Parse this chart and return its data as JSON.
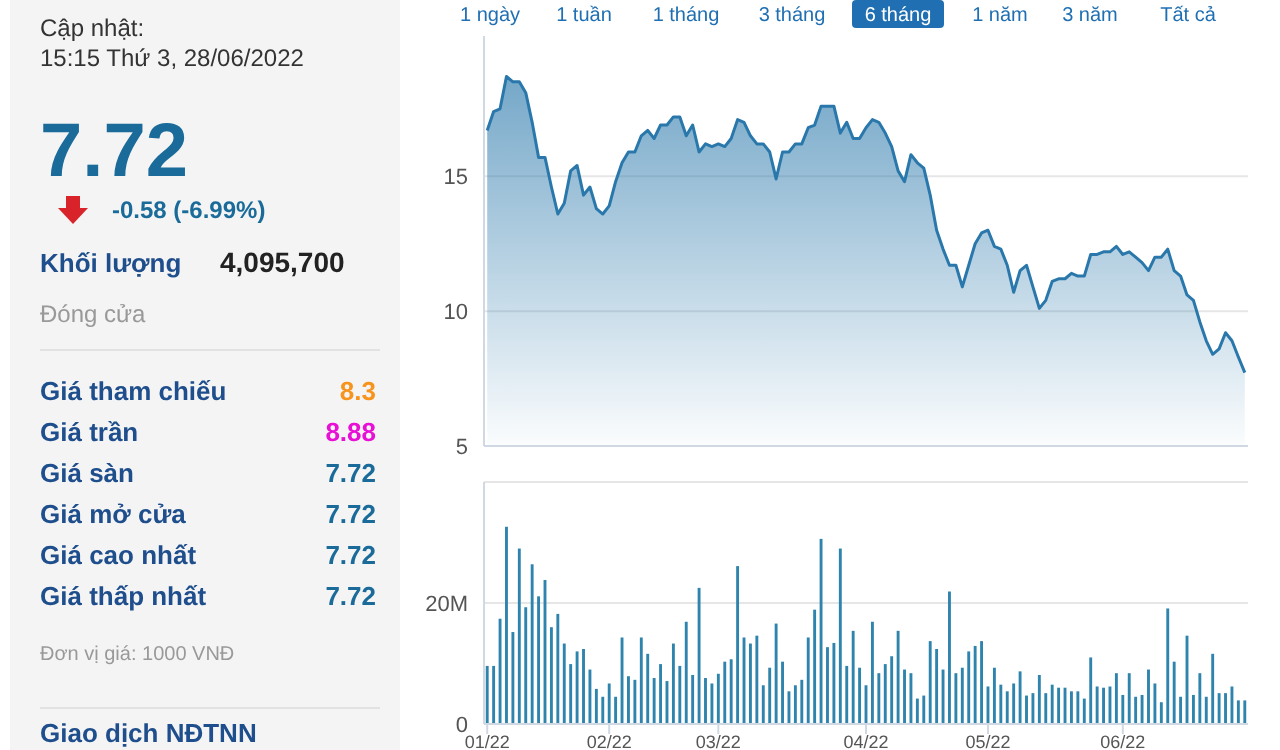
{
  "chart_data": [
    {
      "type": "other",
      "title": "Cập nhật:",
      "subtitle": "15:15 Thứ 3, 28/06/2022",
      "annotations": [
        "7.72",
        "-0.58 (-6.99%)",
        "Khối lượng",
        "4,095,700",
        "Đóng cửa",
        "Giá tham chiếu",
        "8.3",
        "Giá trần",
        "8.88",
        "Giá sàn",
        "7.72",
        "Giá mở cửa",
        "7.72",
        "Giá cao nhất",
        "7.72",
        "Giá thấp nhất",
        "7.72",
        "Đơn vị giá: 1000 VNĐ",
        "Giao dịch NĐTNN"
      ]
    },
    {
      "type": "area",
      "annotations": [
        "1 ngày",
        "1 tuần",
        "1 tháng",
        "3 tháng",
        "6 tháng",
        "1 năm",
        "3 năm",
        "Tất cả"
      ],
      "tick_labels": "y",
      "grid": "y",
      "ylim": [
        5,
        20.2
      ],
      "yticks": [
        5,
        10,
        15
      ],
      "categories": [
        null,
        null,
        null,
        null,
        null,
        null,
        null,
        null,
        null,
        null,
        null,
        null,
        null,
        null,
        null,
        null,
        null,
        null,
        null,
        null,
        null,
        null,
        null,
        null,
        null,
        null,
        null,
        null,
        null,
        null,
        null,
        null,
        null,
        null,
        null,
        null,
        null,
        null,
        null,
        null,
        null,
        null,
        null,
        null,
        null,
        null,
        null,
        null,
        null,
        null,
        null,
        null,
        null,
        null,
        null,
        null,
        null,
        null,
        null,
        null,
        null,
        null,
        null,
        null,
        null,
        null,
        null,
        null,
        null,
        null,
        null,
        null,
        null,
        null,
        null,
        null,
        null,
        null,
        null,
        null,
        null,
        null,
        null,
        null,
        null,
        null,
        null,
        null,
        null,
        null,
        null,
        null,
        null,
        null,
        null,
        null,
        null,
        null,
        null,
        null,
        null,
        null,
        null,
        null,
        null,
        null,
        null,
        null,
        null,
        null,
        null,
        null,
        null,
        null,
        null,
        null,
        null,
        null,
        null
      ],
      "series": [
        {
          "color": "#2a78ab",
          "values": [
            16.7,
            17.4,
            17.5,
            18.7,
            18.5,
            18.5,
            18.1,
            17.0,
            15.7,
            15.7,
            14.6,
            13.6,
            14.0,
            15.2,
            15.4,
            14.3,
            14.6,
            13.8,
            13.6,
            13.9,
            14.8,
            15.5,
            15.9,
            15.9,
            16.5,
            16.7,
            16.4,
            16.9,
            16.9,
            17.2,
            17.2,
            16.5,
            16.9,
            15.9,
            16.2,
            16.1,
            16.2,
            16.1,
            16.4,
            17.1,
            17.0,
            16.5,
            16.2,
            16.2,
            15.9,
            14.9,
            15.9,
            15.9,
            16.2,
            16.2,
            16.8,
            16.9,
            17.6,
            17.6,
            17.6,
            16.6,
            17.0,
            16.4,
            16.4,
            16.8,
            17.1,
            17.0,
            16.6,
            16.1,
            15.2,
            14.8,
            15.8,
            15.5,
            15.3,
            14.3,
            13.0,
            12.3,
            11.7,
            11.7,
            10.9,
            11.7,
            12.5,
            12.9,
            13.0,
            12.4,
            12.3,
            11.7,
            10.7,
            11.5,
            11.7,
            10.9,
            10.1,
            10.4,
            11.1,
            11.2,
            11.2,
            11.4,
            11.3,
            11.3,
            12.1,
            12.1,
            12.2,
            12.2,
            12.4,
            12.1,
            12.2,
            12.0,
            11.8,
            11.5,
            12.0,
            12.0,
            12.3,
            11.5,
            11.3,
            10.6,
            10.4,
            9.6,
            8.9,
            8.4,
            8.6,
            9.2,
            8.9,
            8.3,
            7.72
          ]
        }
      ]
    },
    {
      "type": "bar",
      "grid": "y",
      "ylim": [
        0,
        40
      ],
      "yticks": [
        0,
        {
          "value": 20,
          "label": "20M"
        },
        {
          "value": 40,
          "label": null
        }
      ],
      "categories": [
        "01/22",
        null,
        null,
        null,
        null,
        null,
        null,
        null,
        null,
        null,
        null,
        null,
        null,
        null,
        null,
        null,
        null,
        null,
        null,
        "02/22",
        null,
        null,
        null,
        null,
        null,
        null,
        null,
        null,
        null,
        null,
        null,
        null,
        null,
        null,
        null,
        null,
        "03/22",
        null,
        null,
        null,
        null,
        null,
        null,
        null,
        null,
        null,
        null,
        null,
        null,
        null,
        null,
        null,
        null,
        null,
        null,
        null,
        null,
        null,
        null,
        "04/22",
        null,
        null,
        null,
        null,
        null,
        null,
        null,
        null,
        null,
        null,
        null,
        null,
        null,
        null,
        null,
        null,
        null,
        null,
        "05/22",
        null,
        null,
        null,
        null,
        null,
        null,
        null,
        null,
        null,
        null,
        null,
        null,
        null,
        null,
        null,
        null,
        null,
        null,
        null,
        null,
        "06/22",
        null,
        null,
        null,
        null,
        null,
        null,
        null,
        null,
        null,
        null,
        null,
        null,
        null,
        null,
        null,
        null,
        null,
        null,
        null
      ],
      "series": [
        {
          "color": "#2f84ad",
          "values": [
            9.6,
            9.6,
            17.4,
            32.6,
            15.2,
            29,
            19.3,
            26.4,
            21.1,
            23.8,
            16,
            18.2,
            13.3,
            9.9,
            12,
            12.4,
            9,
            5.8,
            4.5,
            6.7,
            4.5,
            14.3,
            7.9,
            7.3,
            14.3,
            11.6,
            7.6,
            9.9,
            7.1,
            13.3,
            9.6,
            16.9,
            8.1,
            22.5,
            7.6,
            6.7,
            8.3,
            10.3,
            10.7,
            26.1,
            14.3,
            13.3,
            14.6,
            6.4,
            9.3,
            16.6,
            10.3,
            5.4,
            6.4,
            7.3,
            14.3,
            18.9,
            30.6,
            12.7,
            13.4,
            29,
            9.6,
            15.4,
            9.3,
            6.4,
            16.9,
            8.4,
            9.9,
            11.2,
            15.4,
            9,
            8.4,
            4.2,
            4.7,
            13.7,
            12.4,
            9,
            21.9,
            8.4,
            9.3,
            12,
            12.9,
            13.7,
            6.2,
            9.3,
            6.5,
            5.4,
            6.7,
            8.7,
            4.7,
            5.1,
            8.1,
            5.1,
            6.5,
            6,
            6,
            5.4,
            5.4,
            4.2,
            11,
            6.2,
            6,
            6.2,
            8.4,
            4.8,
            8.4,
            4.5,
            4.8,
            9,
            6.7,
            3.6,
            19.1,
            10.3,
            4.5,
            14.6,
            4.8,
            8.4,
            4.5,
            11.6,
            5.1,
            5.1,
            6.2,
            3.9,
            3.9
          ]
        }
      ]
    }
  ]
}
